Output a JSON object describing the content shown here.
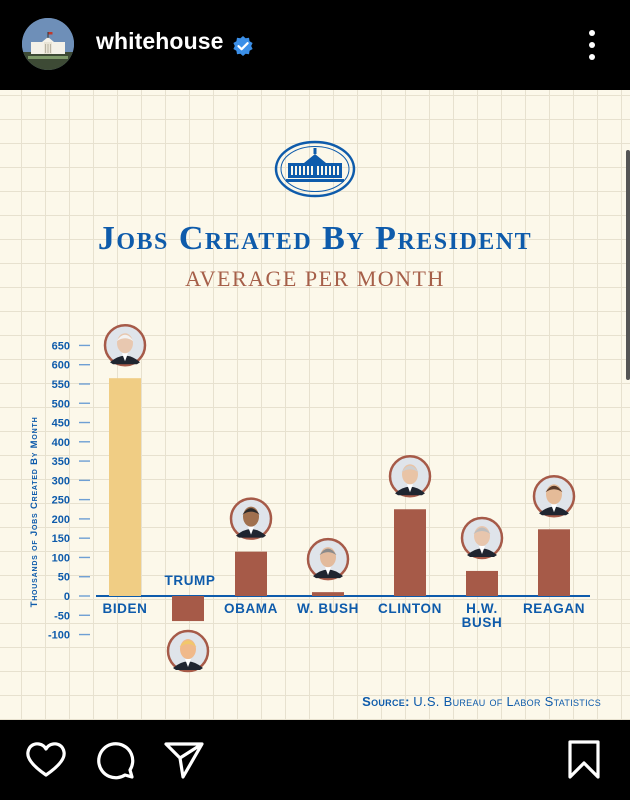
{
  "account": {
    "username": "whitehouse",
    "verified": true
  },
  "post": {
    "title": "Jobs Created By President",
    "subtitle": "AVERAGE PER MONTH",
    "source_label": "Source:",
    "source_text": "U.S. Bureau of Labor Statistics"
  },
  "chart_data": {
    "type": "bar",
    "title": "Jobs Created By President",
    "subtitle": "Average per month",
    "ylabel": "Thousands of Jobs Created By Month",
    "xlabel": "",
    "ylim": [
      -100,
      650
    ],
    "yticks": [
      650,
      600,
      550,
      500,
      450,
      400,
      350,
      300,
      250,
      200,
      150,
      100,
      50,
      0,
      -50,
      -100
    ],
    "categories": [
      "BIDEN",
      "TRUMP",
      "OBAMA",
      "W. BUSH",
      "CLINTON",
      "H.W. BUSH",
      "REAGAN"
    ],
    "values": [
      565,
      -65,
      115,
      10,
      225,
      65,
      173
    ],
    "colors": [
      "#f0cd84",
      "#a65a48",
      "#a65a48",
      "#a65a48",
      "#a65a48",
      "#a65a48",
      "#a65a48"
    ],
    "grid": true
  },
  "colors": {
    "brand_blue": "#0e5bab",
    "bar_rust": "#a65a48",
    "bar_gold": "#f0cd84",
    "background": "#fcf8ea"
  },
  "actions": {
    "like_icon": "heart-icon",
    "comment_icon": "comment-icon",
    "share_icon": "send-icon",
    "save_icon": "bookmark-icon",
    "more_icon": "more-vertical-icon"
  }
}
